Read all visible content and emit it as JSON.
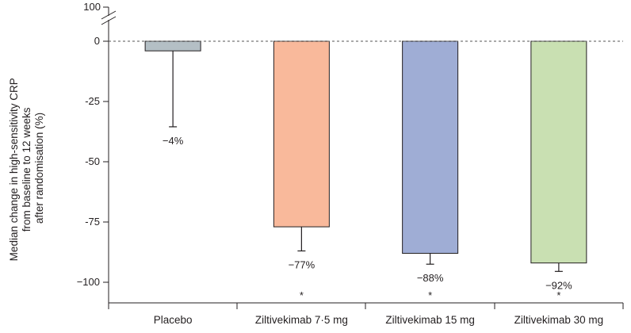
{
  "chart_data": {
    "type": "bar",
    "title": "",
    "xlabel": "",
    "ylabel": [
      "Median change in high-sensitivity CRP",
      "from baseline to 12 weeks",
      "after randomisation (%)"
    ],
    "categories": [
      "Placebo",
      "Ziltivekimab 7·5 mg",
      "Ziltivekimab 15 mg",
      "Ziltivekimab 30 mg"
    ],
    "values": [
      -4,
      -77,
      -88,
      -92
    ],
    "error_lower": [
      -35.5,
      -87,
      -92.5,
      -95.5
    ],
    "value_labels": [
      "−4%",
      "−77%",
      "−88%",
      "−92%"
    ],
    "significance_markers": [
      "",
      "*",
      "*",
      "*"
    ],
    "colors": [
      "#b4bfc5",
      "#f9b99b",
      "#9fadd5",
      "#c9e0b2"
    ],
    "yticks": [
      0,
      -25,
      -50,
      -75,
      -100
    ],
    "ytick_labels": [
      "0",
      "-25",
      "-50",
      "-75",
      "−100"
    ],
    "ylim": [
      -108,
      0
    ],
    "axis_break_label": "100",
    "reference_line": 0,
    "grid": false
  }
}
